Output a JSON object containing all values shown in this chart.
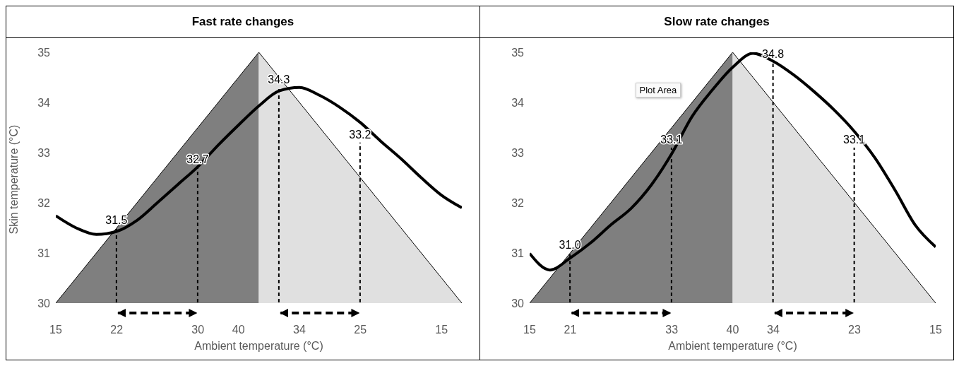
{
  "chart_data": [
    {
      "type": "line",
      "title": "Fast rate changes",
      "xlabel": "Ambient temperature (°C)",
      "ylabel": "Skin temperature (°C)",
      "ylim": [
        30,
        35
      ],
      "yticks": [
        30,
        31,
        32,
        33,
        34,
        35
      ],
      "categories": [
        "15",
        null,
        null,
        "22",
        null,
        null,
        null,
        "30",
        null,
        "40",
        null,
        null,
        "34",
        null,
        null,
        "25",
        null,
        null,
        null,
        "15",
        null
      ],
      "series": [
        {
          "type": "area",
          "color": "#7f7f7f",
          "values": [
            30,
            30.5,
            31,
            31.5,
            32,
            32.5,
            33,
            33.5,
            34,
            34.5,
            35,
            null,
            null,
            null,
            null,
            null,
            null,
            null,
            null,
            null,
            null
          ]
        },
        {
          "type": "area",
          "color": "#e0e0e0",
          "values": [
            null,
            null,
            null,
            null,
            null,
            null,
            null,
            null,
            null,
            null,
            35,
            34.5,
            34,
            33.5,
            33,
            32.5,
            32,
            31.5,
            31,
            30.5,
            30
          ]
        },
        {
          "color": "#000000",
          "line_style": "solid",
          "values": [
            31.74,
            31.5,
            31.37,
            31.43,
            31.65,
            32,
            32.36,
            32.72,
            33.15,
            33.55,
            33.93,
            34.23,
            34.3,
            34.14,
            33.9,
            33.6,
            33.23,
            32.88,
            32.5,
            32.15,
            31.9
          ]
        },
        {
          "type": "bar",
          "color": "#000000",
          "line_style": "dashed",
          "values": [
            null,
            null,
            null,
            31.5,
            null,
            null,
            null,
            32.7,
            null,
            null,
            null,
            34.3,
            null,
            null,
            null,
            33.2,
            null,
            null,
            null,
            null,
            null
          ],
          "value_labels": [
            null,
            null,
            null,
            "31.5",
            null,
            null,
            null,
            "32.7",
            null,
            null,
            null,
            "34.3",
            null,
            null,
            null,
            "33.2",
            null,
            null,
            null,
            null,
            null
          ]
        }
      ]
    },
    {
      "type": "line",
      "title": "Slow rate changes",
      "xlabel": "Ambient temperature (°C)",
      "ylim": [
        30,
        35
      ],
      "yticks": [
        30,
        31,
        32,
        33,
        34,
        35
      ],
      "categories": [
        "15",
        null,
        "21",
        null,
        null,
        null,
        null,
        "33",
        null,
        null,
        "40",
        null,
        "34",
        null,
        null,
        null,
        "23",
        null,
        null,
        null,
        "15"
      ],
      "series": [
        {
          "type": "area",
          "color": "#7f7f7f",
          "values": [
            30,
            30.5,
            31,
            31.5,
            32,
            32.5,
            33,
            33.5,
            34,
            34.5,
            35,
            null,
            null,
            null,
            null,
            null,
            null,
            null,
            null,
            null,
            null
          ]
        },
        {
          "type": "area",
          "color": "#e0e0e0",
          "values": [
            null,
            null,
            null,
            null,
            null,
            null,
            null,
            null,
            null,
            null,
            35,
            34.5,
            34,
            33.5,
            33,
            32.5,
            32,
            31.5,
            31,
            30.5,
            30
          ]
        },
        {
          "color": "#000000",
          "line_style": "solid",
          "values": [
            30.99,
            30.66,
            30.9,
            31.2,
            31.56,
            31.89,
            32.36,
            32.98,
            33.72,
            34.25,
            34.7,
            34.98,
            34.82,
            34.55,
            34.22,
            33.85,
            33.42,
            32.9,
            32.25,
            31.55,
            31.12
          ]
        },
        {
          "type": "bar",
          "color": "#000000",
          "line_style": "dashed",
          "values": [
            null,
            null,
            31,
            null,
            null,
            null,
            null,
            33.1,
            null,
            null,
            null,
            null,
            34.8,
            null,
            null,
            null,
            33.1,
            null,
            null,
            null,
            null
          ],
          "value_labels": [
            null,
            null,
            "31.0",
            null,
            null,
            null,
            null,
            "33.1",
            null,
            null,
            null,
            null,
            "34.8",
            null,
            null,
            null,
            "33.1",
            null,
            null,
            null,
            null
          ]
        }
      ],
      "annotations": [
        "Plot Area"
      ]
    }
  ]
}
